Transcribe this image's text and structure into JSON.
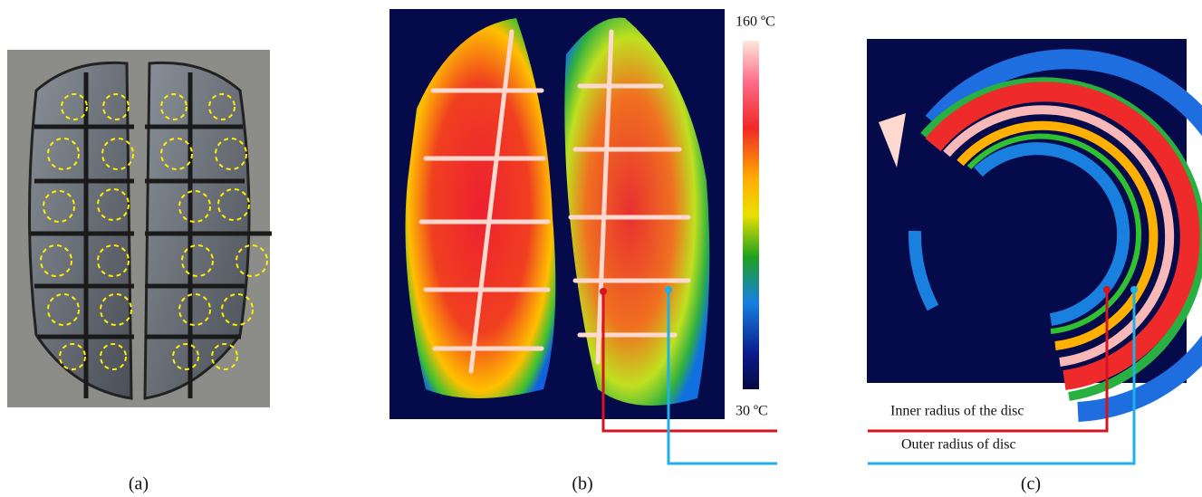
{
  "figure": {
    "panels": [
      {
        "label": "(a)"
      },
      {
        "label": "(b)",
        "scale_max": "160 ºC",
        "scale_min": "30 ºC"
      },
      {
        "label": "(c)",
        "annotations": [
          "Inner radius of the disc",
          "Outer radius of disc"
        ]
      }
    ]
  }
}
